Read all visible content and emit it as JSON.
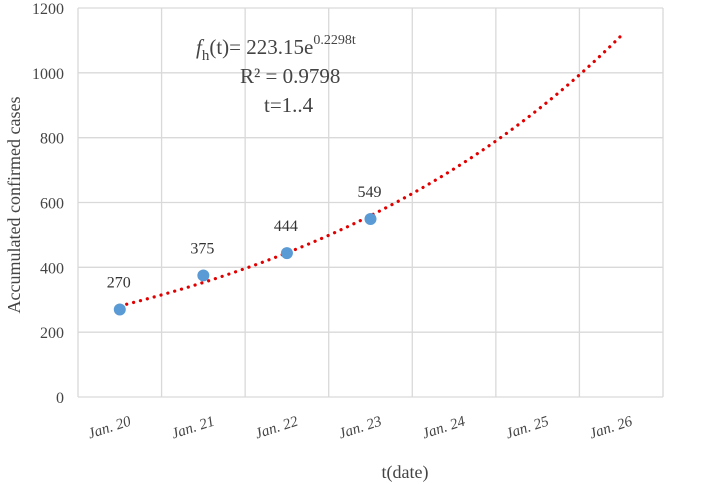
{
  "chart_data": {
    "type": "scatter",
    "xlabel": "t(date)",
    "ylabel": "Accumulated confirmed cases",
    "categories": [
      "Jan. 20",
      "Jan. 21",
      "Jan. 22",
      "Jan. 23",
      "Jan. 24",
      "Jan. 25",
      "Jan. 26"
    ],
    "ylim": [
      0,
      1200
    ],
    "yticks": [
      0,
      200,
      400,
      600,
      800,
      1000,
      1200
    ],
    "grid": "vertical-and-horizontal",
    "series": [
      {
        "values": [
          270,
          375,
          444,
          549
        ],
        "labels": [
          "270",
          "375",
          "444",
          "549"
        ],
        "color": "#5b9bd5"
      }
    ],
    "trendline": {
      "type": "exponential",
      "a": 223.15,
      "b": 0.2298,
      "t_range": [
        1,
        7
      ],
      "color": "#e00000",
      "style": "dotted"
    },
    "annotation": {
      "eq_f": "f",
      "eq_sub": "h",
      "eq_mid": "(t)= 223.15e",
      "eq_sup": "0.2298t",
      "r2": "R² = 0.9798",
      "range": "t=1..4"
    }
  },
  "colors": {
    "grid": "#d9d9d9",
    "point": "#5b9bd5",
    "trend": "#e00000"
  }
}
